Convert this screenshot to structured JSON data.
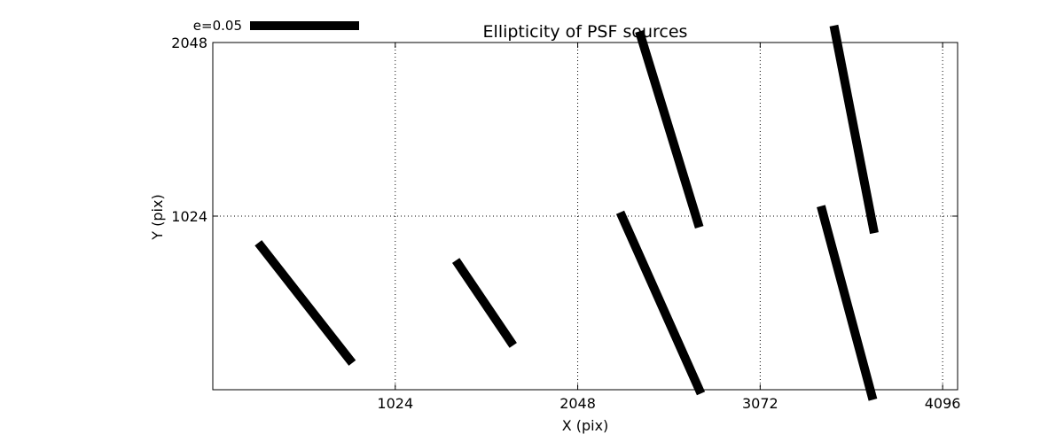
{
  "chart_data": {
    "type": "scatter",
    "title": "Ellipticity of PSF sources",
    "xlabel": "X (pix)",
    "ylabel": "Y (pix)",
    "xlim": [
      0,
      4180
    ],
    "ylim": [
      0,
      2048
    ],
    "xticks": [
      1024,
      2048,
      3072,
      4096
    ],
    "yticks": [
      1024,
      2048
    ],
    "grid": true,
    "grid_style": "dotted",
    "legend": {
      "label": "e=0.05",
      "position": "top-left",
      "reference_e": 0.05
    },
    "color": "#000000",
    "series": [
      {
        "glyph": "ellipticity whisker",
        "points": [
          {
            "x": 519,
            "y": 512,
            "e": 0.07,
            "angle_deg": -52
          },
          {
            "x": 1525,
            "y": 512,
            "e": 0.047,
            "angle_deg": -56
          },
          {
            "x": 2513,
            "y": 512,
            "e": 0.091,
            "angle_deg": -66
          },
          {
            "x": 3559,
            "y": 512,
            "e": 0.092,
            "angle_deg": -75
          },
          {
            "x": 2562,
            "y": 1536,
            "e": 0.094,
            "angle_deg": -73
          },
          {
            "x": 3599,
            "y": 1536,
            "e": 0.097,
            "angle_deg": -79
          }
        ]
      }
    ]
  }
}
